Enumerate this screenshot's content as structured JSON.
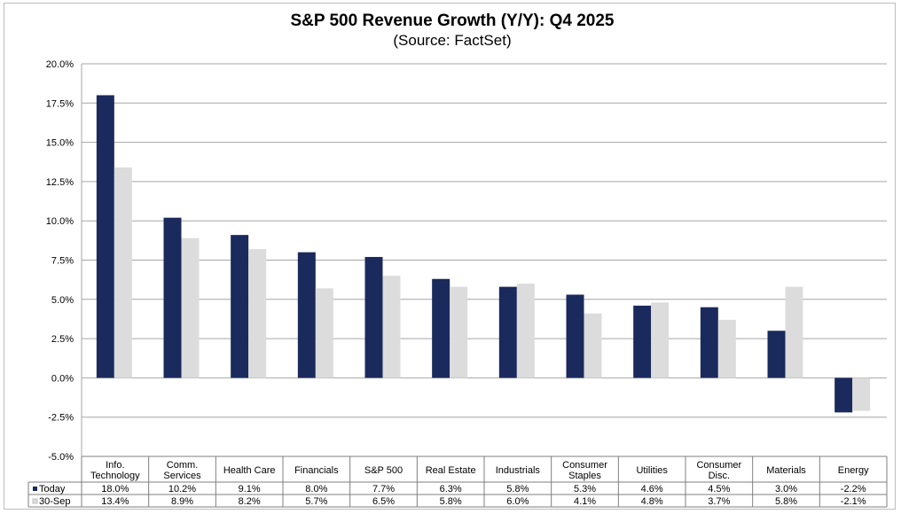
{
  "chart_data": {
    "type": "bar",
    "title": "S&P 500 Revenue Growth (Y/Y):  Q4 2025",
    "subtitle": "(Source: FactSet)",
    "categories": [
      [
        "Info.",
        "Technology"
      ],
      [
        "Comm.",
        "Services"
      ],
      [
        "Health Care"
      ],
      [
        "Financials"
      ],
      [
        "S&P 500"
      ],
      [
        "Real Estate"
      ],
      [
        "Industrials"
      ],
      [
        "Consumer",
        "Staples"
      ],
      [
        "Utilities"
      ],
      [
        "Consumer",
        "Disc."
      ],
      [
        "Materials"
      ],
      [
        "Energy"
      ]
    ],
    "series": [
      {
        "name": "Today",
        "color": "#1b2a5c",
        "values": [
          18.0,
          10.2,
          9.1,
          8.0,
          7.7,
          6.3,
          5.8,
          5.3,
          4.6,
          4.5,
          3.0,
          -2.2
        ],
        "labels": [
          "18.0%",
          "10.2%",
          "9.1%",
          "8.0%",
          "7.7%",
          "6.3%",
          "5.8%",
          "5.3%",
          "4.6%",
          "4.5%",
          "3.0%",
          "-2.2%"
        ]
      },
      {
        "name": "30-Sep",
        "color": "#dcdcdc",
        "values": [
          13.4,
          8.9,
          8.2,
          5.7,
          6.5,
          5.8,
          6.0,
          4.1,
          4.8,
          3.7,
          5.8,
          -2.1
        ],
        "labels": [
          "13.4%",
          "8.9%",
          "8.2%",
          "5.7%",
          "6.5%",
          "5.8%",
          "6.0%",
          "4.1%",
          "4.8%",
          "3.7%",
          "5.8%",
          "-2.1%"
        ]
      }
    ],
    "ylim": [
      -5.0,
      20.0
    ],
    "yticks": [
      20.0,
      17.5,
      15.0,
      12.5,
      10.0,
      7.5,
      5.0,
      2.5,
      0.0,
      -2.5,
      -5.0
    ],
    "ytick_labels": [
      "20.0%",
      "17.5%",
      "15.0%",
      "12.5%",
      "10.0%",
      "7.5%",
      "5.0%",
      "2.5%",
      "0.0%",
      "-2.5%",
      "-5.0%"
    ],
    "grid": true,
    "legend": "data-table-below"
  }
}
